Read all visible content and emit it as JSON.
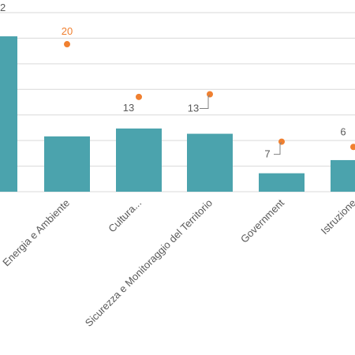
{
  "chart_data": {
    "type": "bar",
    "title": "",
    "xlabel": "",
    "ylabel": "",
    "ylim": [
      0,
      34
    ],
    "grid": true,
    "legend": "none",
    "categories": [
      "Energia e Ambiente",
      "Cultura...",
      "Sicurezza e Monitoraggio del Territorio",
      "Government",
      "Istruzione"
    ],
    "partial_bar": {
      "label": "2",
      "value": 29.5
    },
    "series": [
      {
        "type": "bar",
        "values": [
          10.5,
          12,
          11,
          3.5,
          6
        ]
      },
      {
        "type": "scatter",
        "values": [
          28,
          18,
          18.5,
          9.5,
          8.5
        ],
        "labels": [
          "20",
          "13",
          "13",
          "7",
          "6"
        ]
      }
    ],
    "colors": {
      "bar": "#4ba3ad",
      "dot": "#f08030",
      "label_orange": "#f08030",
      "label_gray": "#595959"
    }
  }
}
